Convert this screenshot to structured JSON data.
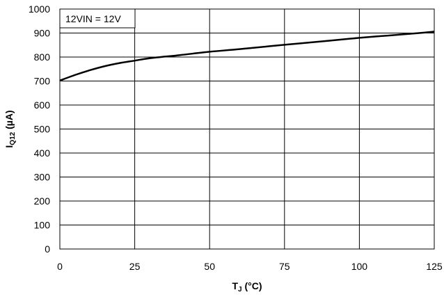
{
  "chart_data": {
    "type": "line",
    "title": "",
    "annotation": "12VIN = 12V",
    "xlabel": {
      "main": "T",
      "sub": "J",
      "unit": " (°C)"
    },
    "ylabel": {
      "main": "I",
      "sub": "Q12",
      "unit": " (µA)"
    },
    "xlim": [
      0,
      125
    ],
    "ylim": [
      0,
      1000
    ],
    "x_ticks": [
      0,
      25,
      50,
      75,
      100,
      125
    ],
    "y_ticks": [
      0,
      100,
      200,
      300,
      400,
      500,
      600,
      700,
      800,
      900,
      1000
    ],
    "grid": true,
    "series": [
      {
        "color": "#000000",
        "x": [
          0,
          5,
          10,
          15,
          20,
          25,
          30,
          40,
          50,
          60,
          75,
          90,
          100,
          110,
          120,
          125
        ],
        "y": [
          702,
          725,
          745,
          762,
          775,
          785,
          795,
          808,
          822,
          833,
          851,
          868,
          880,
          890,
          900,
          906
        ]
      }
    ]
  }
}
